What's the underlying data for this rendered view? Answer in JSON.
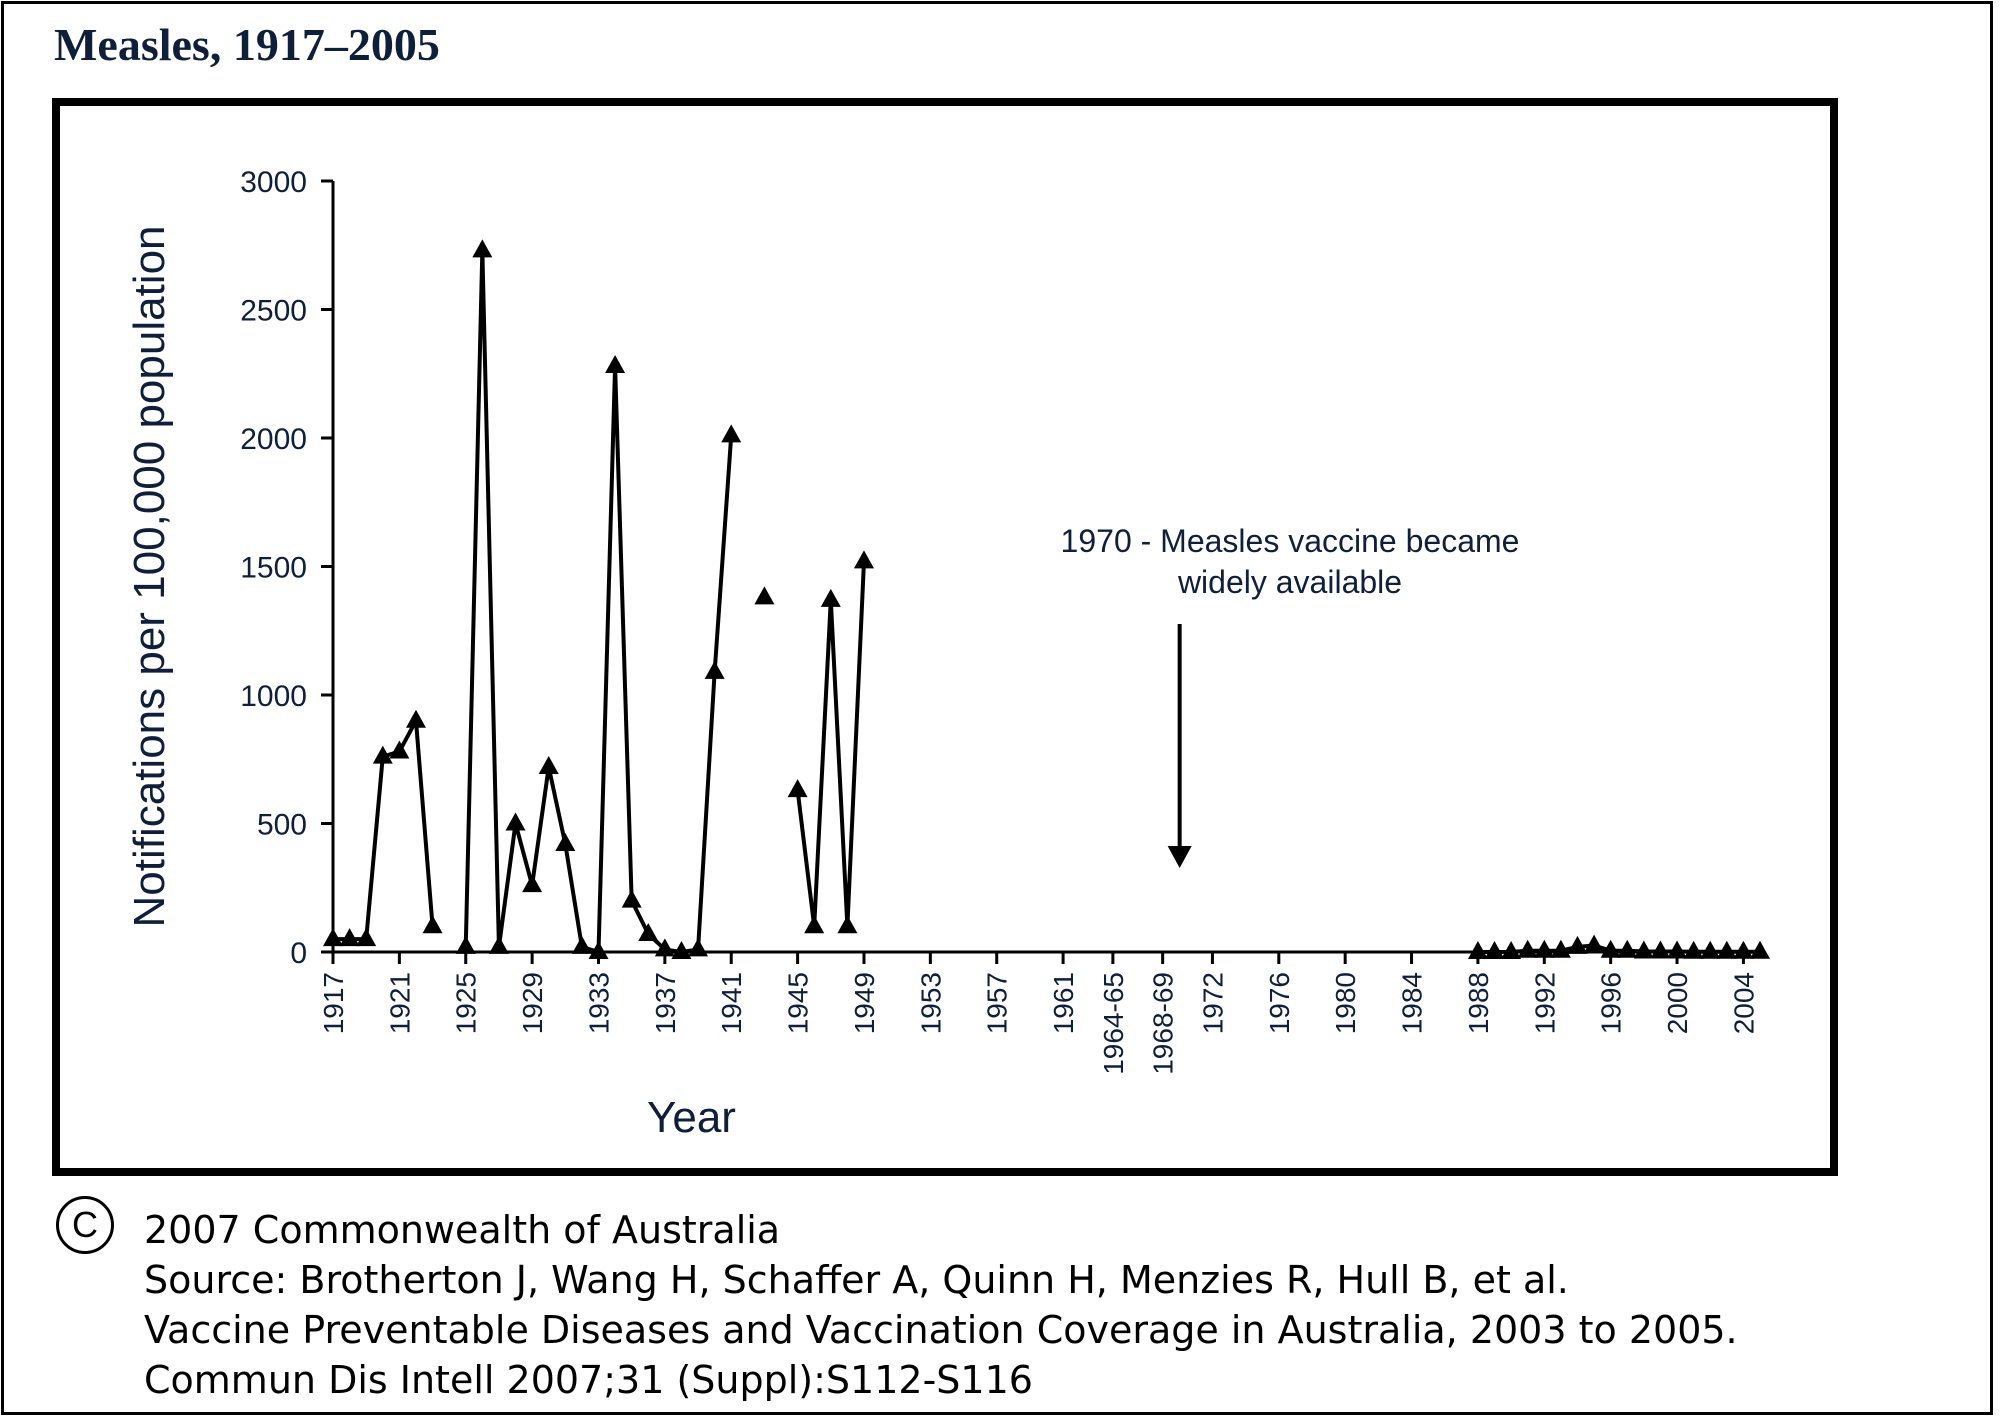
{
  "figure": {
    "title": "Measles, 1917–2005",
    "copyright_symbol": "C",
    "credits": [
      "2007 Commonwealth of Australia",
      "Source: Brotherton J, Wang H, Schaffer A, Quinn H, Menzies R, Hull B, et al.",
      "Vaccine Preventable Diseases and Vaccination Coverage in Australia, 2003 to 2005.",
      "Commun Dis Intell 2007;31 (Suppl):S112-S116"
    ]
  },
  "chart_data": {
    "type": "line",
    "title": "Measles, 1917–2005",
    "xlabel": "Year",
    "ylabel": "Notifications per 100,000 population",
    "ylim": [
      0,
      3000
    ],
    "yticks": [
      0,
      500,
      1000,
      1500,
      2000,
      2500,
      3000
    ],
    "categories": [
      "1917",
      "1918",
      "1919",
      "1920",
      "1921",
      "1922",
      "1923",
      "1924",
      "1925",
      "1926",
      "1927",
      "1928",
      "1929",
      "1930",
      "1931",
      "1932",
      "1933",
      "1934",
      "1935",
      "1936",
      "1937",
      "1938",
      "1939",
      "1940",
      "1941",
      "1942",
      "1943",
      "1944",
      "1945",
      "1946",
      "1947",
      "1948",
      "1949",
      "1950",
      "1951",
      "1952",
      "1953",
      "1954",
      "1955",
      "1956",
      "1957",
      "1958",
      "1959",
      "1960",
      "1961",
      "1962",
      "1963",
      "1964-65",
      "1966",
      "1967",
      "1968-69",
      "1970",
      "1971",
      "1972",
      "1973",
      "1974",
      "1975",
      "1976",
      "1977",
      "1978",
      "1979",
      "1980",
      "1981",
      "1982",
      "1983",
      "1984",
      "1985",
      "1986",
      "1987",
      "1988",
      "1989",
      "1990",
      "1991",
      "1992",
      "1993",
      "1994",
      "1995",
      "1996",
      "1997",
      "1998",
      "1999",
      "2000",
      "2001",
      "2002",
      "2003",
      "2004",
      "2005"
    ],
    "tick_labels": [
      "1917",
      "1921",
      "1925",
      "1929",
      "1933",
      "1937",
      "1941",
      "1945",
      "1949",
      "1953",
      "1957",
      "1961",
      "1964-65",
      "1968-69",
      "1972",
      "1976",
      "1980",
      "1984",
      "1988",
      "1992",
      "1996",
      "2000",
      "2004"
    ],
    "series": [
      {
        "values": [
          50,
          50,
          50,
          760,
          780,
          900,
          100,
          null,
          20,
          2730,
          20,
          500,
          260,
          720,
          420,
          20,
          0,
          2280,
          200,
          70,
          10,
          0,
          10,
          1090,
          2010,
          null,
          1380,
          null,
          630,
          100,
          1370,
          100,
          1520,
          null,
          null,
          null,
          null,
          null,
          null,
          null,
          null,
          null,
          null,
          null,
          null,
          null,
          null,
          null,
          null,
          null,
          null,
          null,
          null,
          null,
          null,
          null,
          null,
          null,
          null,
          null,
          null,
          null,
          null,
          null,
          null,
          null,
          null,
          null,
          null,
          0,
          0,
          0,
          5,
          5,
          5,
          20,
          25,
          5,
          5,
          2,
          2,
          2,
          1,
          1,
          1,
          1,
          1
        ]
      }
    ],
    "annotations": [
      {
        "text": [
          "1970 - Measles vaccine became",
          "widely available"
        ],
        "x": "1968-69",
        "arrow": "down"
      }
    ],
    "grid": false,
    "legend": "none"
  }
}
